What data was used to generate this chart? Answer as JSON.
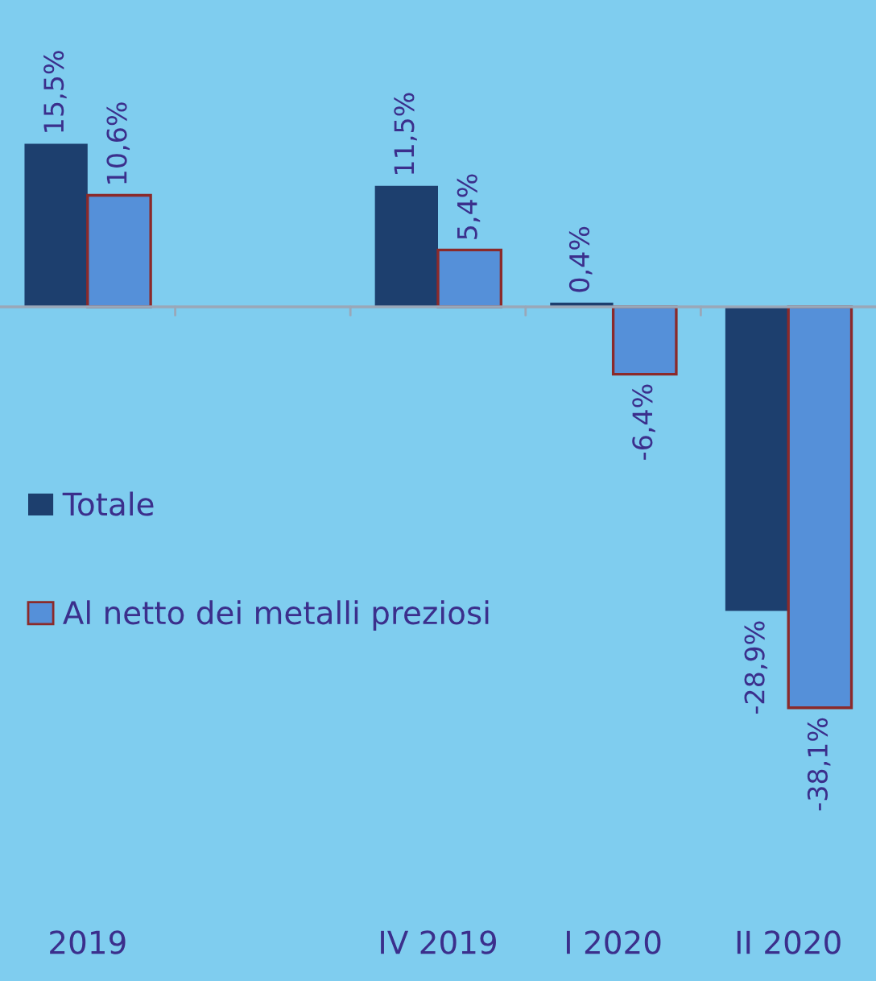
{
  "chart_data": {
    "type": "bar",
    "categories": [
      "2019",
      null,
      "IV 2019",
      "I 2020",
      "II 2020"
    ],
    "series": [
      {
        "name": "Totale",
        "color": "#1d3f6e",
        "values": [
          15.5,
          null,
          11.5,
          0.4,
          -28.9
        ],
        "value_labels": [
          "15,5%",
          null,
          "11,5%",
          "0,4%",
          "-28,9%"
        ]
      },
      {
        "name": "Al netto dei metalli preziosi",
        "color": "#5590d9",
        "values": [
          10.6,
          null,
          5.4,
          -6.4,
          -38.1
        ],
        "value_labels": [
          "10,6%",
          null,
          "5,4%",
          "-6,4%",
          "-38,1%"
        ]
      }
    ],
    "legend": "left",
    "tick_labels": "x"
  }
}
